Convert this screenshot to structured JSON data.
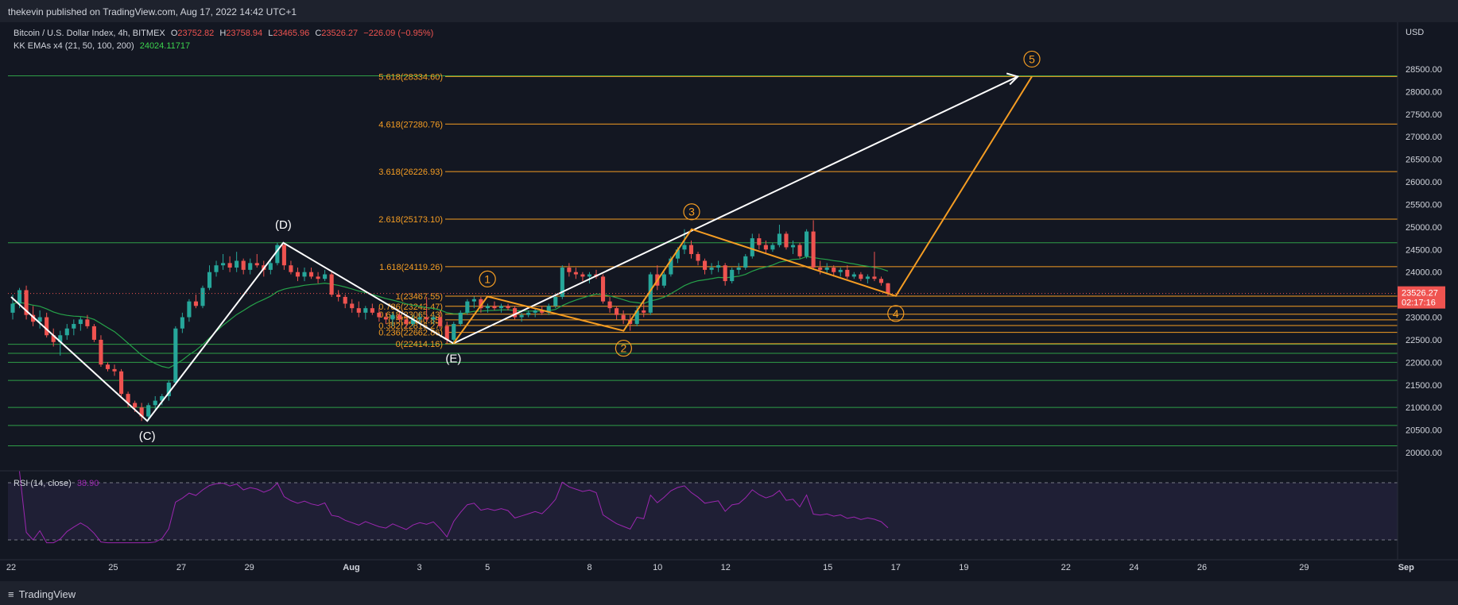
{
  "header": {
    "published": "thekevin published on TradingView.com, Aug 17, 2022 14:42 UTC+1"
  },
  "legend": {
    "symbol": "Bitcoin / U.S. Dollar Index, 4h, BITMEX",
    "o_label": "O",
    "o": "23752.82",
    "h_label": "H",
    "h": "23758.94",
    "l_label": "L",
    "l": "23465.96",
    "c_label": "C",
    "c": "23526.27",
    "change": "−226.09 (−0.95%)",
    "ema_label": "KK EMAs x4 (21, 50, 100, 200)",
    "ema_value": "24024.11717"
  },
  "price_axis": {
    "currency": "USD",
    "last_price": "23526.27",
    "countdown": "02:17:16"
  },
  "rsi": {
    "label": "RSI (14, close)",
    "value": "38.90"
  },
  "footer": {
    "logo": "TradingView"
  },
  "colors": {
    "bg": "#131722",
    "up": "#26a69a",
    "down": "#ef5350",
    "fib": "#f59d23",
    "hline": "#2e9e47",
    "ema": "#26a34a",
    "rsi": "#9c27b0",
    "wave": "#ffffff"
  },
  "chart_data": {
    "type": "candlestick",
    "interval": "4h",
    "y_ticks": [
      20000,
      20500,
      21000,
      21500,
      22000,
      22500,
      23000,
      23500,
      24000,
      24500,
      25000,
      25500,
      26000,
      26500,
      27000,
      27500,
      28000,
      28500
    ],
    "x_ticks": [
      "22",
      "25",
      "27",
      "29",
      "Aug",
      "3",
      "5",
      "8",
      "10",
      "12",
      "15",
      "17",
      "19",
      "22",
      "24",
      "26",
      "29",
      "Sep"
    ],
    "rsi_ticks": [
      40,
      60
    ],
    "fib_levels": [
      {
        "label": "5.618(28334.60)",
        "price": 28334.6
      },
      {
        "label": "4.618(27280.76)",
        "price": 27280.76
      },
      {
        "label": "3.618(26226.93)",
        "price": 26226.93
      },
      {
        "label": "2.618(25173.10)",
        "price": 25173.1
      },
      {
        "label": "1.618(24119.26)",
        "price": 24119.26
      },
      {
        "label": "1(23467.55)",
        "price": 23467.55
      },
      {
        "label": "0.786(23242.47)",
        "price": 23242.47
      },
      {
        "label": "0.618(23065.43)",
        "price": 23065.43
      },
      {
        "label": "0.5(22940.85)",
        "price": 22940.85
      },
      {
        "label": "0.382(22816.27)",
        "price": 22816.27
      },
      {
        "label": "0.236(22662.86)",
        "price": 22662.86
      },
      {
        "label": "0(22414.16)",
        "price": 22414.16
      }
    ],
    "horizontal_levels": [
      28350,
      24650,
      22400,
      22200,
      22000,
      21600,
      21000,
      20600,
      20150
    ],
    "abc_waves": [
      {
        "label": "(C)",
        "date": "Jul 26",
        "price": 20700
      },
      {
        "label": "(D)",
        "date": "Jul 30",
        "price": 24650
      },
      {
        "label": "(E)",
        "date": "Aug 4",
        "price": 22420
      }
    ],
    "impulse_waves": [
      {
        "label": "1",
        "date": "Aug 5",
        "price": 23460
      },
      {
        "label": "2",
        "date": "Aug 9",
        "price": 22700
      },
      {
        "label": "3",
        "date": "Aug 11",
        "price": 24950
      },
      {
        "label": "4",
        "date": "Aug 17",
        "price": 23470
      },
      {
        "label": "5",
        "date": "Aug 21",
        "price": 28334
      }
    ],
    "candles": [
      {
        "o": 23100,
        "h": 23500,
        "l": 22950,
        "c": 23300
      },
      {
        "o": 23300,
        "h": 23650,
        "l": 23200,
        "c": 23600
      },
      {
        "o": 23600,
        "h": 23700,
        "l": 22950,
        "c": 23050
      },
      {
        "o": 23050,
        "h": 23250,
        "l": 22800,
        "c": 22900
      },
      {
        "o": 22900,
        "h": 23150,
        "l": 22750,
        "c": 23000
      },
      {
        "o": 23000,
        "h": 23100,
        "l": 22550,
        "c": 22600
      },
      {
        "o": 22600,
        "h": 22750,
        "l": 22350,
        "c": 22450
      },
      {
        "o": 22450,
        "h": 22700,
        "l": 22150,
        "c": 22600
      },
      {
        "o": 22600,
        "h": 22850,
        "l": 22500,
        "c": 22750
      },
      {
        "o": 22750,
        "h": 22950,
        "l": 22600,
        "c": 22850
      },
      {
        "o": 22850,
        "h": 23000,
        "l": 22700,
        "c": 22950
      },
      {
        "o": 22950,
        "h": 23050,
        "l": 22750,
        "c": 22800
      },
      {
        "o": 22800,
        "h": 22850,
        "l": 22450,
        "c": 22500
      },
      {
        "o": 22500,
        "h": 22600,
        "l": 21900,
        "c": 21950
      },
      {
        "o": 21950,
        "h": 22000,
        "l": 21800,
        "c": 21850
      },
      {
        "o": 21850,
        "h": 21950,
        "l": 21700,
        "c": 21800
      },
      {
        "o": 21800,
        "h": 21850,
        "l": 21250,
        "c": 21300
      },
      {
        "o": 21300,
        "h": 21350,
        "l": 21000,
        "c": 21100
      },
      {
        "o": 21100,
        "h": 21150,
        "l": 20900,
        "c": 21000
      },
      {
        "o": 21000,
        "h": 21100,
        "l": 20700,
        "c": 20800
      },
      {
        "o": 20800,
        "h": 21100,
        "l": 20700,
        "c": 21050
      },
      {
        "o": 21050,
        "h": 21250,
        "l": 20950,
        "c": 21150
      },
      {
        "o": 21150,
        "h": 21300,
        "l": 21050,
        "c": 21250
      },
      {
        "o": 21250,
        "h": 21600,
        "l": 21150,
        "c": 21550
      },
      {
        "o": 21550,
        "h": 22800,
        "l": 21500,
        "c": 22750
      },
      {
        "o": 22750,
        "h": 23100,
        "l": 22650,
        "c": 23000
      },
      {
        "o": 23000,
        "h": 23400,
        "l": 22900,
        "c": 23350
      },
      {
        "o": 23350,
        "h": 23500,
        "l": 23200,
        "c": 23250
      },
      {
        "o": 23250,
        "h": 23700,
        "l": 23200,
        "c": 23650
      },
      {
        "o": 23650,
        "h": 24150,
        "l": 23600,
        "c": 24000
      },
      {
        "o": 24000,
        "h": 24250,
        "l": 23900,
        "c": 24150
      },
      {
        "o": 24150,
        "h": 24400,
        "l": 24050,
        "c": 24200
      },
      {
        "o": 24200,
        "h": 24350,
        "l": 24000,
        "c": 24100
      },
      {
        "o": 24100,
        "h": 24450,
        "l": 24000,
        "c": 24250
      },
      {
        "o": 24250,
        "h": 24300,
        "l": 23950,
        "c": 24050
      },
      {
        "o": 24050,
        "h": 24300,
        "l": 23950,
        "c": 24200
      },
      {
        "o": 24200,
        "h": 24400,
        "l": 24100,
        "c": 24150
      },
      {
        "o": 24150,
        "h": 24250,
        "l": 23900,
        "c": 24050
      },
      {
        "o": 24050,
        "h": 24300,
        "l": 23950,
        "c": 24200
      },
      {
        "o": 24200,
        "h": 24650,
        "l": 24150,
        "c": 24600
      },
      {
        "o": 24600,
        "h": 24650,
        "l": 24050,
        "c": 24150
      },
      {
        "o": 24150,
        "h": 24250,
        "l": 23950,
        "c": 24000
      },
      {
        "o": 24000,
        "h": 24100,
        "l": 23800,
        "c": 23900
      },
      {
        "o": 23900,
        "h": 24100,
        "l": 23800,
        "c": 24000
      },
      {
        "o": 24000,
        "h": 24100,
        "l": 23850,
        "c": 23900
      },
      {
        "o": 23900,
        "h": 24000,
        "l": 23750,
        "c": 23850
      },
      {
        "o": 23850,
        "h": 24050,
        "l": 23800,
        "c": 23950
      },
      {
        "o": 23950,
        "h": 24000,
        "l": 23450,
        "c": 23500
      },
      {
        "o": 23500,
        "h": 23600,
        "l": 23350,
        "c": 23450
      },
      {
        "o": 23450,
        "h": 23500,
        "l": 23200,
        "c": 23300
      },
      {
        "o": 23300,
        "h": 23400,
        "l": 23100,
        "c": 23200
      },
      {
        "o": 23200,
        "h": 23350,
        "l": 23000,
        "c": 23100
      },
      {
        "o": 23100,
        "h": 23250,
        "l": 22950,
        "c": 23200
      },
      {
        "o": 23200,
        "h": 23300,
        "l": 23050,
        "c": 23100
      },
      {
        "o": 23100,
        "h": 23200,
        "l": 22900,
        "c": 23000
      },
      {
        "o": 23000,
        "h": 23100,
        "l": 22850,
        "c": 22950
      },
      {
        "o": 22950,
        "h": 23100,
        "l": 22800,
        "c": 23050
      },
      {
        "o": 23050,
        "h": 23150,
        "l": 22900,
        "c": 22950
      },
      {
        "o": 22950,
        "h": 23050,
        "l": 22750,
        "c": 22850
      },
      {
        "o": 22850,
        "h": 23050,
        "l": 22800,
        "c": 22950
      },
      {
        "o": 22950,
        "h": 23100,
        "l": 22850,
        "c": 23000
      },
      {
        "o": 23000,
        "h": 23450,
        "l": 22900,
        "c": 22950
      },
      {
        "o": 22950,
        "h": 23050,
        "l": 22850,
        "c": 23000
      },
      {
        "o": 23000,
        "h": 23150,
        "l": 22750,
        "c": 22800
      },
      {
        "o": 22800,
        "h": 22900,
        "l": 22420,
        "c": 22500
      },
      {
        "o": 22500,
        "h": 22900,
        "l": 22450,
        "c": 22850
      },
      {
        "o": 22850,
        "h": 23150,
        "l": 22800,
        "c": 23100
      },
      {
        "o": 23100,
        "h": 23400,
        "l": 23050,
        "c": 23350
      },
      {
        "o": 23350,
        "h": 23460,
        "l": 23200,
        "c": 23400
      },
      {
        "o": 23400,
        "h": 23450,
        "l": 23100,
        "c": 23200
      },
      {
        "o": 23200,
        "h": 23300,
        "l": 23100,
        "c": 23250
      },
      {
        "o": 23250,
        "h": 23350,
        "l": 23150,
        "c": 23200
      },
      {
        "o": 23200,
        "h": 23300,
        "l": 23100,
        "c": 23250
      },
      {
        "o": 23250,
        "h": 23300,
        "l": 23150,
        "c": 23200
      },
      {
        "o": 23200,
        "h": 23250,
        "l": 22950,
        "c": 23000
      },
      {
        "o": 23000,
        "h": 23100,
        "l": 22900,
        "c": 23050
      },
      {
        "o": 23050,
        "h": 23150,
        "l": 23000,
        "c": 23100
      },
      {
        "o": 23100,
        "h": 23200,
        "l": 23000,
        "c": 23150
      },
      {
        "o": 23150,
        "h": 23250,
        "l": 23050,
        "c": 23100
      },
      {
        "o": 23100,
        "h": 23300,
        "l": 23050,
        "c": 23250
      },
      {
        "o": 23250,
        "h": 23500,
        "l": 23200,
        "c": 23450
      },
      {
        "o": 23450,
        "h": 24150,
        "l": 23400,
        "c": 24100
      },
      {
        "o": 24100,
        "h": 24200,
        "l": 23900,
        "c": 24000
      },
      {
        "o": 24000,
        "h": 24100,
        "l": 23850,
        "c": 23950
      },
      {
        "o": 23950,
        "h": 24000,
        "l": 23800,
        "c": 23900
      },
      {
        "o": 23900,
        "h": 24000,
        "l": 23750,
        "c": 23950
      },
      {
        "o": 23950,
        "h": 24050,
        "l": 23850,
        "c": 23900
      },
      {
        "o": 23900,
        "h": 23950,
        "l": 23300,
        "c": 23350
      },
      {
        "o": 23350,
        "h": 23450,
        "l": 23100,
        "c": 23200
      },
      {
        "o": 23200,
        "h": 23250,
        "l": 22950,
        "c": 23050
      },
      {
        "o": 23050,
        "h": 23150,
        "l": 22850,
        "c": 22950
      },
      {
        "o": 22950,
        "h": 23050,
        "l": 22700,
        "c": 22850
      },
      {
        "o": 22850,
        "h": 23250,
        "l": 22800,
        "c": 23150
      },
      {
        "o": 23150,
        "h": 23400,
        "l": 23000,
        "c": 23100
      },
      {
        "o": 23100,
        "h": 24000,
        "l": 23050,
        "c": 23950
      },
      {
        "o": 23950,
        "h": 24150,
        "l": 23600,
        "c": 23700
      },
      {
        "o": 23700,
        "h": 24000,
        "l": 23650,
        "c": 23950
      },
      {
        "o": 23950,
        "h": 24350,
        "l": 23900,
        "c": 24300
      },
      {
        "o": 24300,
        "h": 24550,
        "l": 24200,
        "c": 24500
      },
      {
        "o": 24500,
        "h": 24950,
        "l": 24400,
        "c": 24600
      },
      {
        "o": 24600,
        "h": 24700,
        "l": 24300,
        "c": 24400
      },
      {
        "o": 24400,
        "h": 24450,
        "l": 24150,
        "c": 24250
      },
      {
        "o": 24250,
        "h": 24300,
        "l": 23950,
        "c": 24050
      },
      {
        "o": 24050,
        "h": 24200,
        "l": 23950,
        "c": 24100
      },
      {
        "o": 24100,
        "h": 24250,
        "l": 24000,
        "c": 24150
      },
      {
        "o": 24150,
        "h": 24200,
        "l": 23700,
        "c": 23800
      },
      {
        "o": 23800,
        "h": 24100,
        "l": 23750,
        "c": 24050
      },
      {
        "o": 24050,
        "h": 24200,
        "l": 23950,
        "c": 24100
      },
      {
        "o": 24100,
        "h": 24400,
        "l": 24050,
        "c": 24350
      },
      {
        "o": 24350,
        "h": 24850,
        "l": 24300,
        "c": 24750
      },
      {
        "o": 24750,
        "h": 24850,
        "l": 24500,
        "c": 24600
      },
      {
        "o": 24600,
        "h": 24700,
        "l": 24400,
        "c": 24500
      },
      {
        "o": 24500,
        "h": 24650,
        "l": 24450,
        "c": 24600
      },
      {
        "o": 24600,
        "h": 25050,
        "l": 24550,
        "c": 24850
      },
      {
        "o": 24850,
        "h": 24900,
        "l": 24500,
        "c": 24550
      },
      {
        "o": 24550,
        "h": 24700,
        "l": 24400,
        "c": 24600
      },
      {
        "o": 24600,
        "h": 24650,
        "l": 24300,
        "c": 24350
      },
      {
        "o": 24350,
        "h": 24950,
        "l": 24300,
        "c": 24900
      },
      {
        "o": 24900,
        "h": 25150,
        "l": 24050,
        "c": 24100
      },
      {
        "o": 24100,
        "h": 24250,
        "l": 23950,
        "c": 24050
      },
      {
        "o": 24050,
        "h": 24200,
        "l": 23950,
        "c": 24100
      },
      {
        "o": 24100,
        "h": 24150,
        "l": 23900,
        "c": 24000
      },
      {
        "o": 24000,
        "h": 24100,
        "l": 23900,
        "c": 24050
      },
      {
        "o": 24050,
        "h": 24150,
        "l": 23850,
        "c": 23900
      },
      {
        "o": 23900,
        "h": 24000,
        "l": 23850,
        "c": 23950
      },
      {
        "o": 23950,
        "h": 24000,
        "l": 23800,
        "c": 23850
      },
      {
        "o": 23850,
        "h": 23950,
        "l": 23750,
        "c": 23900
      },
      {
        "o": 23900,
        "h": 24450,
        "l": 23800,
        "c": 23850
      },
      {
        "o": 23850,
        "h": 23900,
        "l": 23700,
        "c": 23760
      },
      {
        "o": 23752.82,
        "h": 23758.94,
        "l": 23465.96,
        "c": 23526.27
      }
    ]
  }
}
